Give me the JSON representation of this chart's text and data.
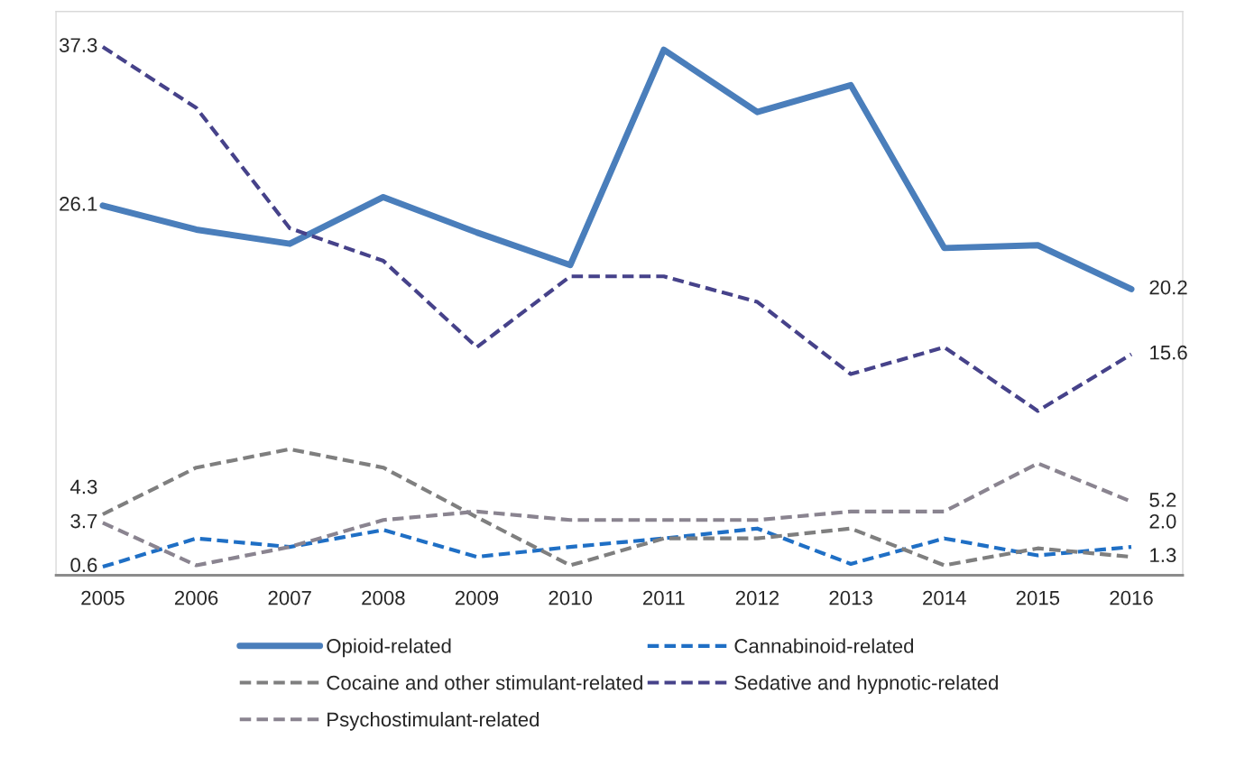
{
  "chart_data": {
    "type": "line",
    "categories": [
      "2005",
      "2006",
      "2007",
      "2008",
      "2009",
      "2010",
      "2011",
      "2012",
      "2013",
      "2014",
      "2015",
      "2016"
    ],
    "ylim": [
      0,
      39.8
    ],
    "series": [
      {
        "name": "Opioid-related",
        "color": "#4a7ebb",
        "line_style": "solid",
        "values": [
          26.1,
          24.4,
          23.4,
          26.7,
          24.2,
          21.9,
          37.1,
          32.7,
          34.6,
          23.1,
          23.3,
          20.2
        ],
        "value_labels": [
          "26.1",
          null,
          null,
          null,
          null,
          null,
          null,
          null,
          null,
          null,
          null,
          "20.2"
        ]
      },
      {
        "name": "Cannabinoid-related",
        "color": "#1f6fc5",
        "line_style": "dashed",
        "values": [
          0.6,
          2.6,
          2.0,
          3.2,
          1.3,
          2.0,
          2.6,
          3.3,
          0.8,
          2.6,
          1.4,
          2.0
        ],
        "value_labels": [
          "0.6",
          null,
          null,
          null,
          null,
          null,
          null,
          null,
          null,
          null,
          null,
          "2.0"
        ]
      },
      {
        "name": "Cocaine and other stimulant-related",
        "color": "#7f7f7f",
        "line_style": "dashed",
        "values": [
          4.3,
          7.6,
          8.9,
          7.6,
          4.1,
          0.7,
          2.6,
          2.6,
          3.3,
          0.7,
          1.9,
          1.3
        ],
        "value_labels": [
          "4.3",
          null,
          null,
          null,
          null,
          null,
          null,
          null,
          null,
          null,
          null,
          "1.3"
        ]
      },
      {
        "name": "Sedative and hypnotic-related",
        "color": "#46428a",
        "line_style": "dashed",
        "values": [
          37.3,
          33.0,
          24.5,
          22.2,
          16.1,
          21.1,
          21.1,
          19.3,
          14.2,
          16.1,
          11.6,
          15.6
        ],
        "value_labels": [
          "37.3",
          null,
          null,
          null,
          null,
          null,
          null,
          null,
          null,
          null,
          null,
          "15.6"
        ]
      },
      {
        "name": "Psychostimulant-related",
        "color": "#8a8490",
        "line_style": "dashed",
        "values": [
          3.7,
          0.7,
          2.0,
          3.9,
          4.5,
          3.9,
          3.9,
          3.9,
          4.5,
          4.5,
          7.9,
          5.2
        ],
        "value_labels": [
          "3.7",
          null,
          null,
          null,
          null,
          null,
          null,
          null,
          null,
          null,
          null,
          "5.2"
        ]
      }
    ],
    "legend": "bottom",
    "grid": false,
    "marker": "none"
  }
}
